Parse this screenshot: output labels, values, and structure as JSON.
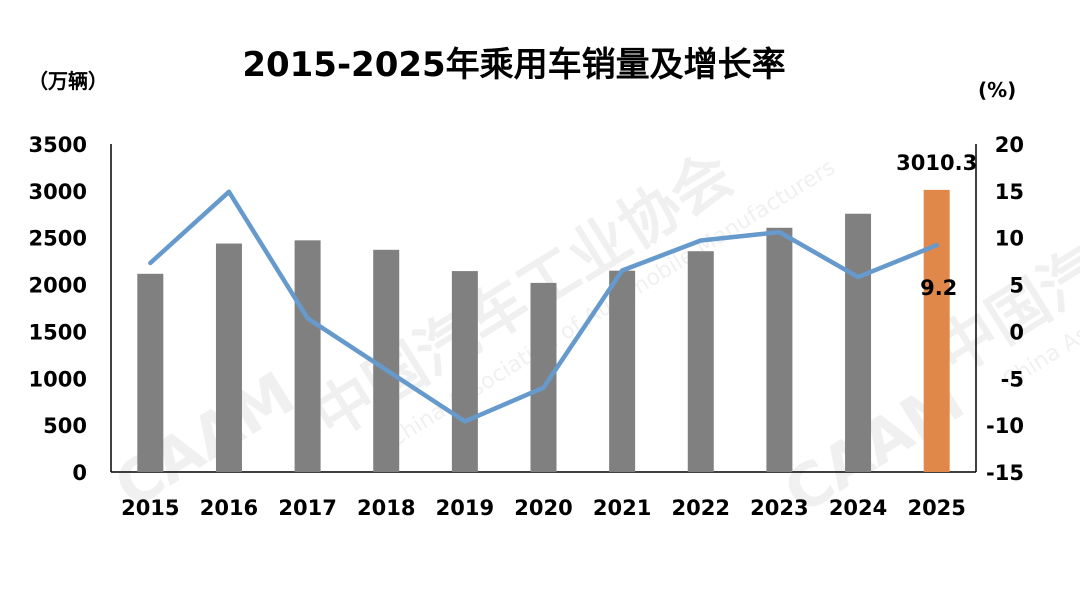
{
  "chart_data": {
    "type": "bar",
    "title": "2015-2025年乘用车销量及增长率",
    "left_unit": "（万辆）",
    "right_unit": "(%)",
    "categories": [
      "2015",
      "2016",
      "2017",
      "2018",
      "2019",
      "2020",
      "2021",
      "2022",
      "2023",
      "2024",
      "2025"
    ],
    "series": [
      {
        "type": "bar",
        "axis": "left",
        "values": [
          2115,
          2438,
          2472,
          2371,
          2144,
          2018,
          2148,
          2356,
          2606,
          2756,
          3010.3
        ],
        "color": "#808080",
        "highlight_color": "#E0874A",
        "highlight_index": 10
      },
      {
        "type": "line",
        "axis": "right",
        "values": [
          7.3,
          14.9,
          1.4,
          -4.1,
          -9.6,
          -6.0,
          6.5,
          9.7,
          10.6,
          5.8,
          9.2
        ],
        "color": "#6699CC"
      }
    ],
    "left_axis": {
      "min": 0,
      "max": 3500,
      "ticks": [
        "0",
        "500",
        "1000",
        "1500",
        "2000",
        "2500",
        "3000",
        "3500"
      ]
    },
    "right_axis": {
      "min": -15,
      "max": 20,
      "ticks": [
        "-15",
        "-10",
        "-5",
        "0",
        "5",
        "10",
        "15",
        "20"
      ]
    },
    "data_labels": [
      {
        "series": 0,
        "index": 10,
        "text": "3010.3"
      },
      {
        "series": 1,
        "index": 10,
        "text": "9.2"
      }
    ],
    "grid": false,
    "legend": "none"
  },
  "watermark": {
    "org_cn": "中国汽车工业协会",
    "org_en": "China Association of Automobile Manufacturers",
    "org_cn_short": "中国汽",
    "org_en_short": "China Asso",
    "logo_text": "CAAM"
  }
}
